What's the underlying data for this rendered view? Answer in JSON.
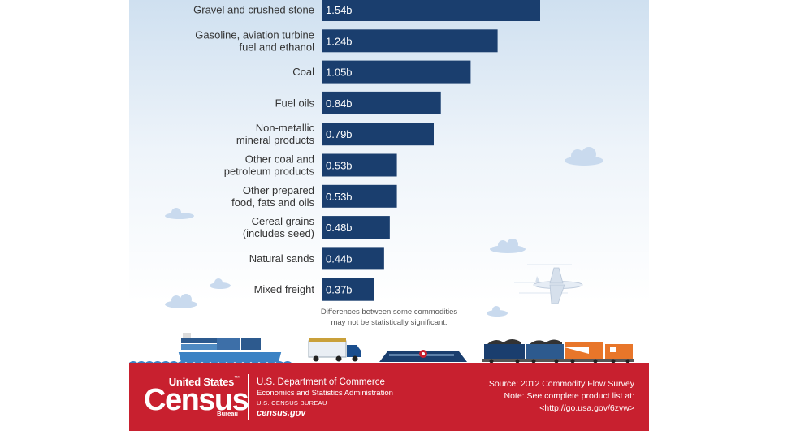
{
  "chart_data": {
    "type": "bar",
    "orientation": "horizontal",
    "unit": "billion",
    "categories": [
      [
        "Gravel and crushed stone"
      ],
      [
        "Gasoline, aviation turbine",
        "fuel and ethanol"
      ],
      [
        "Coal"
      ],
      [
        "Fuel oils"
      ],
      [
        "Non-metallic",
        "mineral products"
      ],
      [
        "Other coal and",
        "petroleum products"
      ],
      [
        "Other prepared",
        "food, fats and oils"
      ],
      [
        "Cereal grains",
        "(includes seed)"
      ],
      [
        "Natural sands"
      ],
      [
        "Mixed freight"
      ]
    ],
    "values": [
      1.54,
      1.24,
      1.05,
      0.84,
      0.79,
      0.53,
      0.53,
      0.48,
      0.44,
      0.37
    ],
    "value_labels": [
      "1.54b",
      "1.24b",
      "1.05b",
      "0.84b",
      "0.79b",
      "0.53b",
      "0.53b",
      "0.48b",
      "0.44b",
      "0.37b"
    ],
    "xlim": [
      0,
      1.54
    ],
    "bar_color": "#1a3e6e",
    "note": [
      "Differences between some commodities",
      "may not be statistically significant."
    ]
  },
  "footer": {
    "logo_top": "United States",
    "logo_tm": "™",
    "logo_main": "Census",
    "logo_sub": "Bureau",
    "dept_name": "U.S. Department of Commerce",
    "dept_admin": "Economics and Statistics Administration",
    "dept_bureau": "U.S. CENSUS BUREAU",
    "website": "census.gov",
    "source": "Source: 2012 Commodity Flow Survey",
    "note_line1": "Note: See complete product list at:",
    "note_line2": "<http://go.usa.gov/6zvw>",
    "background_color": "#c8202f"
  },
  "icons": {
    "illustrations": [
      "cloud-icon",
      "airplane-icon",
      "cargo-ship-icon",
      "truck-icon",
      "pipeline-icon",
      "freight-train-icon"
    ]
  }
}
